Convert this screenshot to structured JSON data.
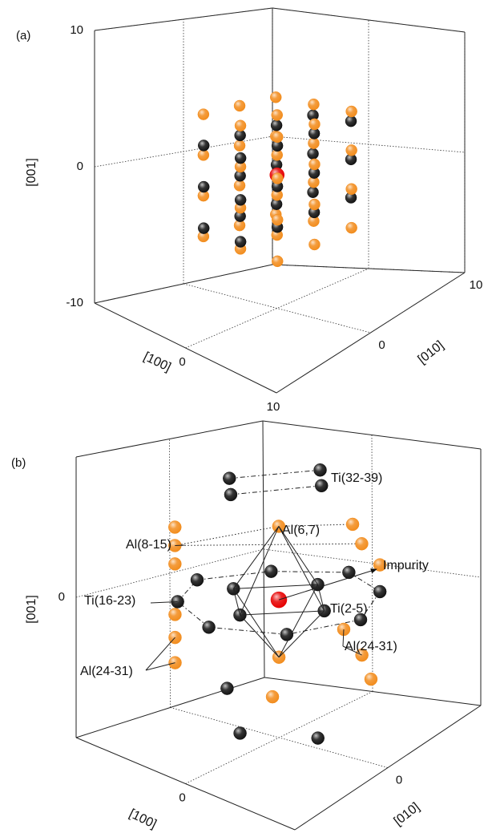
{
  "chart_data": [
    {
      "type": "scatter3d",
      "panel_label": "(a)",
      "xlabel": "[100]",
      "ylabel": "[010]",
      "zlabel": "[001]",
      "xlim": [
        -10,
        10
      ],
      "ylim": [
        -10,
        10
      ],
      "zlim": [
        -10,
        10
      ],
      "xticks": [
        0,
        10
      ],
      "yticks": [
        0,
        10
      ],
      "zticks": [
        -10,
        0,
        10
      ],
      "grid": true,
      "series": [
        {
          "color": "#f28c1c",
          "x": [
            -4,
            -4,
            -4,
            -4,
            -4,
            -4,
            -4,
            -4,
            -4,
            -4,
            -4,
            -4,
            0,
            0,
            0,
            0,
            0,
            0,
            0,
            0,
            0,
            0,
            0,
            0,
            4,
            4,
            4,
            4,
            4,
            4,
            4,
            4,
            4,
            4,
            4,
            4
          ],
          "y": [
            -4,
            -4,
            -4,
            -4,
            0,
            0,
            0,
            0,
            4,
            4,
            4,
            4,
            -4,
            -4,
            -4,
            -4,
            0,
            0,
            0,
            0,
            4,
            4,
            4,
            4,
            -4,
            -4,
            -4,
            -4,
            0,
            0,
            0,
            0,
            4,
            4,
            4,
            4
          ],
          "z": [
            -4.5,
            -1.5,
            1.5,
            4.5,
            -4.5,
            -1.5,
            1.5,
            4.5,
            -4.5,
            -1.5,
            1.5,
            4.5,
            -4.5,
            -1.5,
            1.5,
            4.5,
            -4.5,
            -1.5,
            1.5,
            4.5,
            -4.5,
            -1.5,
            1.5,
            4.5,
            -4.5,
            -1.5,
            1.5,
            4.5,
            -4.5,
            -1.5,
            1.5,
            4.5,
            -4.5,
            -1.5,
            1.5,
            4.5
          ]
        },
        {
          "color": "#111111",
          "x": [
            -2,
            -2,
            -2,
            -2,
            -2,
            -2,
            -2,
            -2,
            -2,
            -2,
            -2,
            -2,
            2,
            2,
            2,
            2,
            2,
            2,
            2,
            2,
            2,
            2,
            2,
            2
          ],
          "y": [
            -6,
            -6,
            -6,
            -2,
            -2,
            -2,
            2,
            2,
            2,
            6,
            6,
            6,
            -6,
            -6,
            -6,
            -2,
            -2,
            -2,
            2,
            2,
            2,
            6,
            6,
            6
          ],
          "z": [
            -3,
            0,
            3,
            -3,
            0,
            3,
            -3,
            0,
            3,
            -3,
            0,
            3,
            -3,
            0,
            3,
            -3,
            0,
            3,
            -3,
            0,
            3,
            -3,
            0,
            3
          ]
        },
        {
          "color": "#e60000",
          "x": [
            0
          ],
          "y": [
            0
          ],
          "z": [
            0
          ]
        }
      ]
    },
    {
      "type": "scatter3d",
      "panel_label": "(b)",
      "xlabel": "[100]",
      "ylabel": "[010]",
      "zlabel": "[001]",
      "xlim": [
        -6,
        6
      ],
      "ylim": [
        -6,
        6
      ],
      "zlim": [
        -6,
        6
      ],
      "xticks": [
        0
      ],
      "yticks": [
        0
      ],
      "zticks": [
        0
      ],
      "grid": true,
      "series": [
        {
          "color": "#111111",
          "x": [
            -2.5,
            0,
            2.5,
            0
          ],
          "y": [
            0,
            2.5,
            0,
            -2.5
          ],
          "z": [
            0,
            0,
            0,
            0
          ]
        },
        {
          "color": "#f28c1c",
          "x": [
            0,
            0
          ],
          "y": [
            0,
            0
          ],
          "z": [
            3.2,
            -2.5
          ]
        },
        {
          "color": "#f28c1c",
          "x": [
            -4,
            -4,
            -4,
            1.5,
            2,
            3
          ],
          "y": [
            -2,
            -2,
            -2,
            3,
            3,
            3
          ],
          "z": [
            1.2,
            2,
            2.8,
            2.8,
            2,
            1.2
          ]
        },
        {
          "color": "#111111",
          "x": [
            -4.5,
            -3,
            0,
            3,
            4.5,
            3,
            0,
            -3
          ],
          "y": [
            0,
            3,
            4.5,
            3,
            0,
            -3,
            -4.5,
            -3
          ],
          "z": [
            0,
            0,
            0,
            0,
            0,
            0,
            0,
            0
          ]
        },
        {
          "color": "#f28c1c",
          "x": [
            -4,
            -4,
            -4,
            1,
            2,
            2.5,
            0.5
          ],
          "y": [
            -2,
            -2,
            -2,
            3,
            3,
            3,
            -1
          ],
          "z": [
            -1,
            -2,
            -3.1,
            -2,
            -3,
            -4,
            -3.8
          ]
        },
        {
          "color": "#111111",
          "x": [
            -1,
            -0.5,
            1,
            1.5
          ],
          "y": [
            -2,
            -2.5,
            1.5,
            1
          ],
          "z": [
            5.5,
            5,
            5.5,
            5
          ]
        },
        {
          "color": "#111111",
          "x": [
            -2,
            0,
            3
          ],
          "y": [
            -1,
            -2.5,
            -1
          ],
          "z": [
            -4,
            -5,
            -5
          ]
        },
        {
          "color": "#e60000",
          "x": [
            0
          ],
          "y": [
            0
          ],
          "z": [
            0
          ]
        }
      ],
      "annotations": [
        {
          "text": "Ti(32-39)"
        },
        {
          "text": "Al(8-15)"
        },
        {
          "text": "Al(6,7)"
        },
        {
          "text": "Impurity"
        },
        {
          "text": "Ti(16-23)"
        },
        {
          "text": "Ti(2-5)"
        },
        {
          "text": "Al(24-31)"
        },
        {
          "text": "Al(24-31)"
        }
      ]
    }
  ]
}
